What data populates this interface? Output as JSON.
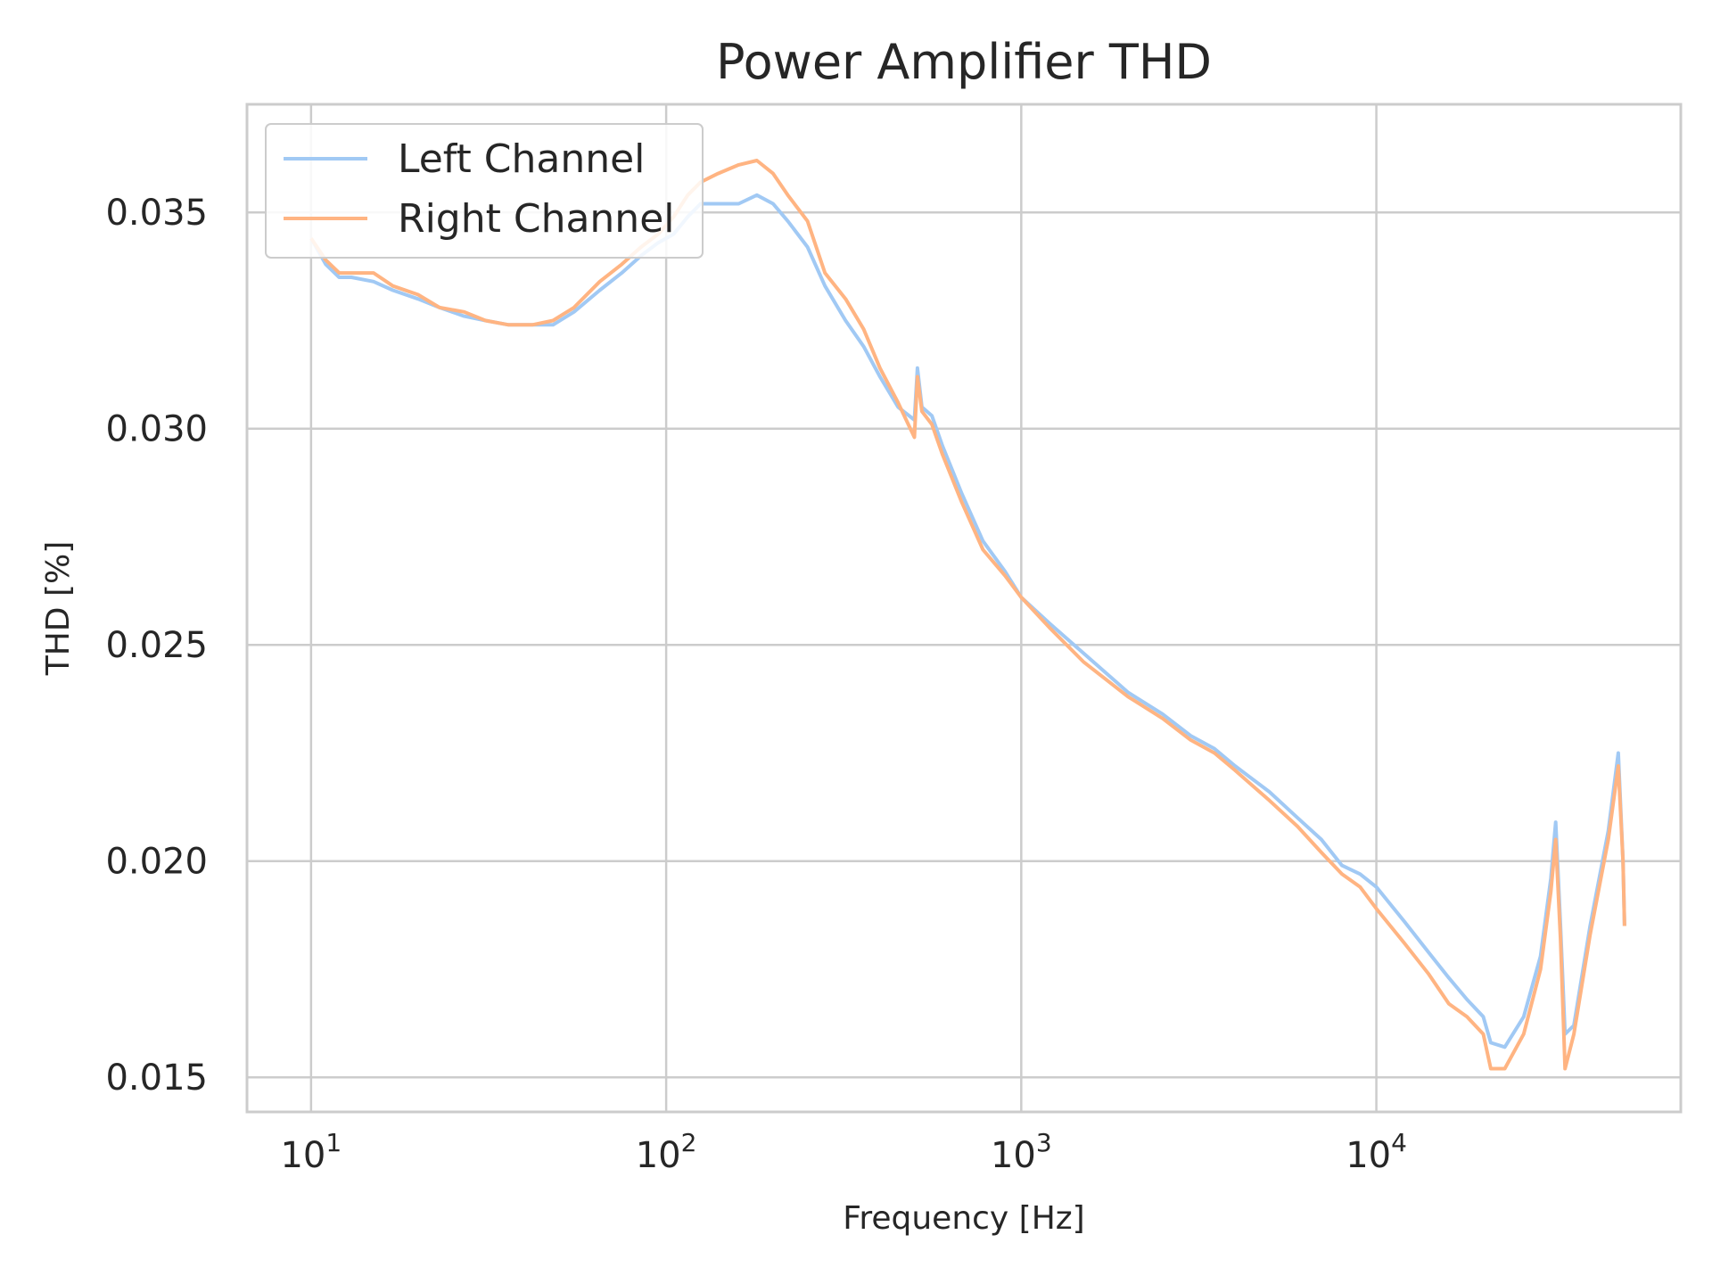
{
  "chart_data": {
    "type": "line",
    "title": "Power Amplifier THD",
    "xlabel": "Frequency [Hz]",
    "ylabel": "THD [%]",
    "xscale": "log",
    "xlim": [
      6.6,
      72000
    ],
    "ylim": [
      0.0142,
      0.0375
    ],
    "grid": true,
    "legend_position": "upper-left",
    "x_ticks": [
      {
        "value": 10,
        "base": "10",
        "exp": "1"
      },
      {
        "value": 100,
        "base": "10",
        "exp": "2"
      },
      {
        "value": 1000,
        "base": "10",
        "exp": "3"
      },
      {
        "value": 10000,
        "base": "10",
        "exp": "4"
      }
    ],
    "y_ticks": [
      {
        "value": 0.015,
        "label": "0.015"
      },
      {
        "value": 0.02,
        "label": "0.020"
      },
      {
        "value": 0.025,
        "label": "0.025"
      },
      {
        "value": 0.03,
        "label": "0.030"
      },
      {
        "value": 0.035,
        "label": "0.035"
      }
    ],
    "series": [
      {
        "name": "Left Channel",
        "color": "#a1c9f4",
        "points": [
          [
            10,
            0.0344
          ],
          [
            11,
            0.0338
          ],
          [
            12,
            0.0335
          ],
          [
            13,
            0.0335
          ],
          [
            15,
            0.0334
          ],
          [
            17,
            0.0332
          ],
          [
            20,
            0.033
          ],
          [
            23,
            0.0328
          ],
          [
            27,
            0.0326
          ],
          [
            31,
            0.0325
          ],
          [
            36,
            0.0324
          ],
          [
            42,
            0.0324
          ],
          [
            48,
            0.0324
          ],
          [
            55,
            0.0327
          ],
          [
            65,
            0.0332
          ],
          [
            75,
            0.0336
          ],
          [
            85,
            0.034
          ],
          [
            95,
            0.0343
          ],
          [
            105,
            0.0345
          ],
          [
            115,
            0.0349
          ],
          [
            125,
            0.0352
          ],
          [
            140,
            0.0352
          ],
          [
            160,
            0.0352
          ],
          [
            180,
            0.0354
          ],
          [
            200,
            0.0352
          ],
          [
            220,
            0.0348
          ],
          [
            250,
            0.0342
          ],
          [
            280,
            0.0333
          ],
          [
            320,
            0.0325
          ],
          [
            360,
            0.0319
          ],
          [
            400,
            0.0312
          ],
          [
            450,
            0.0305
          ],
          [
            500,
            0.0302
          ],
          [
            510,
            0.0314
          ],
          [
            525,
            0.0305
          ],
          [
            560,
            0.0303
          ],
          [
            600,
            0.0296
          ],
          [
            680,
            0.0285
          ],
          [
            780,
            0.0274
          ],
          [
            900,
            0.0267
          ],
          [
            1000,
            0.0261
          ],
          [
            1200,
            0.0255
          ],
          [
            1500,
            0.0248
          ],
          [
            2000,
            0.0239
          ],
          [
            2500,
            0.0234
          ],
          [
            3000,
            0.0229
          ],
          [
            3500,
            0.0226
          ],
          [
            4000,
            0.0222
          ],
          [
            5000,
            0.0216
          ],
          [
            6000,
            0.021
          ],
          [
            7000,
            0.0205
          ],
          [
            8000,
            0.0199
          ],
          [
            9000,
            0.0197
          ],
          [
            10000,
            0.0194
          ],
          [
            12000,
            0.0186
          ],
          [
            14000,
            0.0179
          ],
          [
            16000,
            0.0173
          ],
          [
            18000,
            0.0168
          ],
          [
            20000,
            0.0164
          ],
          [
            21000,
            0.0158
          ],
          [
            23000,
            0.0157
          ],
          [
            26000,
            0.0164
          ],
          [
            29000,
            0.0178
          ],
          [
            31000,
            0.0196
          ],
          [
            32000,
            0.0209
          ],
          [
            33000,
            0.0185
          ],
          [
            34000,
            0.016
          ],
          [
            36000,
            0.0162
          ],
          [
            40000,
            0.0185
          ],
          [
            45000,
            0.0207
          ],
          [
            48000,
            0.0225
          ],
          [
            49500,
            0.02
          ],
          [
            50000,
            0.0185
          ]
        ]
      },
      {
        "name": "Right Channel",
        "color": "#ffb482",
        "points": [
          [
            10,
            0.0344
          ],
          [
            11,
            0.0339
          ],
          [
            12,
            0.0336
          ],
          [
            13,
            0.0336
          ],
          [
            15,
            0.0336
          ],
          [
            17,
            0.0333
          ],
          [
            20,
            0.0331
          ],
          [
            23,
            0.0328
          ],
          [
            27,
            0.0327
          ],
          [
            31,
            0.0325
          ],
          [
            36,
            0.0324
          ],
          [
            42,
            0.0324
          ],
          [
            48,
            0.0325
          ],
          [
            55,
            0.0328
          ],
          [
            65,
            0.0334
          ],
          [
            75,
            0.0338
          ],
          [
            85,
            0.0342
          ],
          [
            95,
            0.0345
          ],
          [
            105,
            0.0349
          ],
          [
            115,
            0.0354
          ],
          [
            125,
            0.0357
          ],
          [
            140,
            0.0359
          ],
          [
            160,
            0.0361
          ],
          [
            180,
            0.0362
          ],
          [
            200,
            0.0359
          ],
          [
            220,
            0.0354
          ],
          [
            250,
            0.0348
          ],
          [
            280,
            0.0336
          ],
          [
            320,
            0.033
          ],
          [
            360,
            0.0323
          ],
          [
            400,
            0.0314
          ],
          [
            450,
            0.0306
          ],
          [
            500,
            0.0298
          ],
          [
            510,
            0.0312
          ],
          [
            525,
            0.0304
          ],
          [
            560,
            0.0301
          ],
          [
            600,
            0.0294
          ],
          [
            680,
            0.0283
          ],
          [
            780,
            0.0272
          ],
          [
            900,
            0.0266
          ],
          [
            1000,
            0.0261
          ],
          [
            1200,
            0.0254
          ],
          [
            1500,
            0.0246
          ],
          [
            2000,
            0.0238
          ],
          [
            2500,
            0.0233
          ],
          [
            3000,
            0.0228
          ],
          [
            3500,
            0.0225
          ],
          [
            4000,
            0.0221
          ],
          [
            5000,
            0.0214
          ],
          [
            6000,
            0.0208
          ],
          [
            7000,
            0.0202
          ],
          [
            8000,
            0.0197
          ],
          [
            9000,
            0.0194
          ],
          [
            10000,
            0.0189
          ],
          [
            12000,
            0.0181
          ],
          [
            14000,
            0.0174
          ],
          [
            16000,
            0.0167
          ],
          [
            18000,
            0.0164
          ],
          [
            20000,
            0.016
          ],
          [
            21000,
            0.0152
          ],
          [
            23000,
            0.0152
          ],
          [
            26000,
            0.016
          ],
          [
            29000,
            0.0175
          ],
          [
            31000,
            0.0193
          ],
          [
            32000,
            0.0205
          ],
          [
            33000,
            0.0182
          ],
          [
            34000,
            0.0152
          ],
          [
            36000,
            0.016
          ],
          [
            40000,
            0.0183
          ],
          [
            45000,
            0.0205
          ],
          [
            48000,
            0.0222
          ],
          [
            49500,
            0.02
          ],
          [
            50000,
            0.0185
          ]
        ]
      }
    ]
  }
}
